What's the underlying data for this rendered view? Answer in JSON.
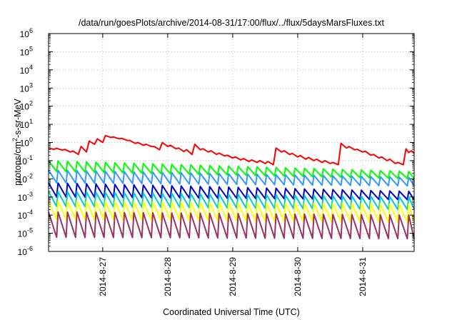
{
  "chart_data": {
    "type": "line",
    "title": "/data/run/goesPlots/archive/2014-08-31/17:00/flux/../flux/5daysMarsFluxes.txt",
    "xlabel": "Coordinated Universal Time (UTC)",
    "ylabel": {
      "base": "protons/cm",
      "sup": "2",
      "rest": "-s-sr-MeV"
    },
    "y_scale": "log",
    "ylim_exponents": [
      -6,
      6
    ],
    "ytick_exponents": [
      -6,
      -5,
      -4,
      -3,
      -2,
      -1,
      0,
      1,
      2,
      3,
      4,
      5,
      6
    ],
    "ytick_base": "10",
    "xlim": [
      "2014-08-26 04:00",
      "2014-08-31 19:00"
    ],
    "xticks": [
      {
        "at": "2014-08-27 00:00",
        "label": "2014-8-27"
      },
      {
        "at": "2014-08-28 00:00",
        "label": "2014-8-28"
      },
      {
        "at": "2014-08-29 00:00",
        "label": "2014-8-29"
      },
      {
        "at": "2014-08-30 00:00",
        "label": "2014-8-30"
      },
      {
        "at": "2014-08-31 00:00",
        "label": "2014-8-31"
      }
    ],
    "grid": true,
    "legend": "none",
    "series": [
      {
        "color": "#ff0000",
        "points": [
          [
            "2014-08-26 04:00",
            0.5
          ],
          [
            "2014-08-26 06:00",
            0.42
          ],
          [
            "2014-08-26 07:00",
            0.48
          ],
          [
            "2014-08-26 09:00",
            0.38
          ],
          [
            "2014-08-26 10:00",
            0.42
          ],
          [
            "2014-08-26 12:00",
            0.3
          ],
          [
            "2014-08-26 13:00",
            0.34
          ],
          [
            "2014-08-26 15:00",
            0.22
          ],
          [
            "2014-08-26 16:00",
            0.6
          ],
          [
            "2014-08-26 18:00",
            0.3
          ],
          [
            "2014-08-26 19:00",
            1.2
          ],
          [
            "2014-08-26 21:00",
            0.8
          ],
          [
            "2014-08-26 22:00",
            1.6
          ],
          [
            "2014-08-27 00:00",
            1.0
          ],
          [
            "2014-08-27 01:00",
            2.4
          ],
          [
            "2014-08-27 03:00",
            1.9
          ],
          [
            "2014-08-27 04:00",
            2.0
          ],
          [
            "2014-08-27 06:00",
            1.6
          ],
          [
            "2014-08-27 07:00",
            1.7
          ],
          [
            "2014-08-27 09:00",
            1.3
          ],
          [
            "2014-08-27 10:00",
            1.3
          ],
          [
            "2014-08-27 12:00",
            0.9
          ],
          [
            "2014-08-27 13:00",
            1.0
          ],
          [
            "2014-08-27 15:00",
            0.7
          ],
          [
            "2014-08-27 16:00",
            0.8
          ],
          [
            "2014-08-27 18:00",
            0.6
          ],
          [
            "2014-08-27 19:00",
            0.6
          ],
          [
            "2014-08-27 21:00",
            0.4
          ],
          [
            "2014-08-27 22:00",
            1.0
          ],
          [
            "2014-08-28 00:00",
            0.6
          ],
          [
            "2014-08-28 01:00",
            0.7
          ],
          [
            "2014-08-28 03:00",
            0.45
          ],
          [
            "2014-08-28 04:00",
            0.5
          ],
          [
            "2014-08-28 06:00",
            0.32
          ],
          [
            "2014-08-28 07:00",
            0.4
          ],
          [
            "2014-08-28 09:00",
            0.22
          ],
          [
            "2014-08-28 10:00",
            0.8
          ],
          [
            "2014-08-28 12:00",
            0.4
          ],
          [
            "2014-08-28 13:00",
            0.45
          ],
          [
            "2014-08-28 15:00",
            0.3
          ],
          [
            "2014-08-28 16:00",
            0.35
          ],
          [
            "2014-08-28 18:00",
            0.22
          ],
          [
            "2014-08-28 19:00",
            0.26
          ],
          [
            "2014-08-28 21:00",
            0.18
          ],
          [
            "2014-08-28 22:00",
            0.2
          ],
          [
            "2014-08-29 00:00",
            0.14
          ],
          [
            "2014-08-29 01:00",
            0.16
          ],
          [
            "2014-08-29 03:00",
            0.11
          ],
          [
            "2014-08-29 04:00",
            0.13
          ],
          [
            "2014-08-29 06:00",
            0.09
          ],
          [
            "2014-08-29 07:00",
            0.11
          ],
          [
            "2014-08-29 09:00",
            0.08
          ],
          [
            "2014-08-29 10:00",
            0.1
          ],
          [
            "2014-08-29 12:00",
            0.07
          ],
          [
            "2014-08-29 13:00",
            0.09
          ],
          [
            "2014-08-29 15:00",
            0.06
          ],
          [
            "2014-08-29 16:00",
            0.5
          ],
          [
            "2014-08-29 18:00",
            0.3
          ],
          [
            "2014-08-29 19:00",
            0.35
          ],
          [
            "2014-08-29 21:00",
            0.22
          ],
          [
            "2014-08-29 22:00",
            0.25
          ],
          [
            "2014-08-30 00:00",
            0.16
          ],
          [
            "2014-08-30 01:00",
            0.19
          ],
          [
            "2014-08-30 03:00",
            0.12
          ],
          [
            "2014-08-30 04:00",
            0.15
          ],
          [
            "2014-08-30 06:00",
            0.1
          ],
          [
            "2014-08-30 07:00",
            0.12
          ],
          [
            "2014-08-30 09:00",
            0.08
          ],
          [
            "2014-08-30 10:00",
            0.1
          ],
          [
            "2014-08-30 12:00",
            0.07
          ],
          [
            "2014-08-30 13:00",
            0.08
          ],
          [
            "2014-08-30 15:00",
            0.06
          ],
          [
            "2014-08-30 16:00",
            0.9
          ],
          [
            "2014-08-30 18:00",
            0.5
          ],
          [
            "2014-08-30 19:00",
            0.6
          ],
          [
            "2014-08-30 21:00",
            0.4
          ],
          [
            "2014-08-30 22:00",
            0.42
          ],
          [
            "2014-08-31 00:00",
            0.3
          ],
          [
            "2014-08-31 01:00",
            0.33
          ],
          [
            "2014-08-31 03:00",
            0.2
          ],
          [
            "2014-08-31 04:00",
            0.22
          ],
          [
            "2014-08-31 06:00",
            0.14
          ],
          [
            "2014-08-31 07:00",
            0.16
          ],
          [
            "2014-08-31 09:00",
            0.1
          ],
          [
            "2014-08-31 10:00",
            0.12
          ],
          [
            "2014-08-31 12:00",
            0.07
          ],
          [
            "2014-08-31 13:00",
            0.08
          ],
          [
            "2014-08-31 15:00",
            0.06
          ],
          [
            "2014-08-31 16:00",
            0.45
          ],
          [
            "2014-08-31 17:00",
            0.28
          ],
          [
            "2014-08-31 18:00",
            0.35
          ],
          [
            "2014-08-31 19:00",
            0.25
          ]
        ]
      },
      {
        "color": "#00ff00",
        "sawtooth": {
          "peak": 0.1,
          "trough": 0.025,
          "peak_end": 0.025,
          "trough_end": 0.01,
          "period_hours": 3.5
        }
      },
      {
        "color": "#3399ff",
        "sawtooth": {
          "peak": 0.03,
          "trough": 0.006,
          "peak_end": 0.012,
          "trough_end": 0.004,
          "period_hours": 3.5
        }
      },
      {
        "color": "#0000cc",
        "sawtooth": {
          "peak": 0.006,
          "trough": 0.001,
          "peak_end": 0.002,
          "trough_end": 0.0007,
          "period_hours": 3.5
        }
      },
      {
        "color": "#00cccc",
        "sawtooth": {
          "peak": 0.002,
          "trough": 0.0003,
          "peak_end": 0.001,
          "trough_end": 0.0002,
          "period_hours": 3.5
        }
      },
      {
        "color": "#ffff00",
        "sawtooth": {
          "peak": 0.0006,
          "trough": 6e-05,
          "peak_end": 0.0004,
          "trough_end": 4e-05,
          "period_hours": 3.5
        }
      },
      {
        "color": "#993366",
        "sawtooth": {
          "peak": 0.00015,
          "trough": 6e-06,
          "peak_end": 0.0001,
          "trough_end": 5e-06,
          "period_hours": 3.5
        }
      }
    ]
  }
}
